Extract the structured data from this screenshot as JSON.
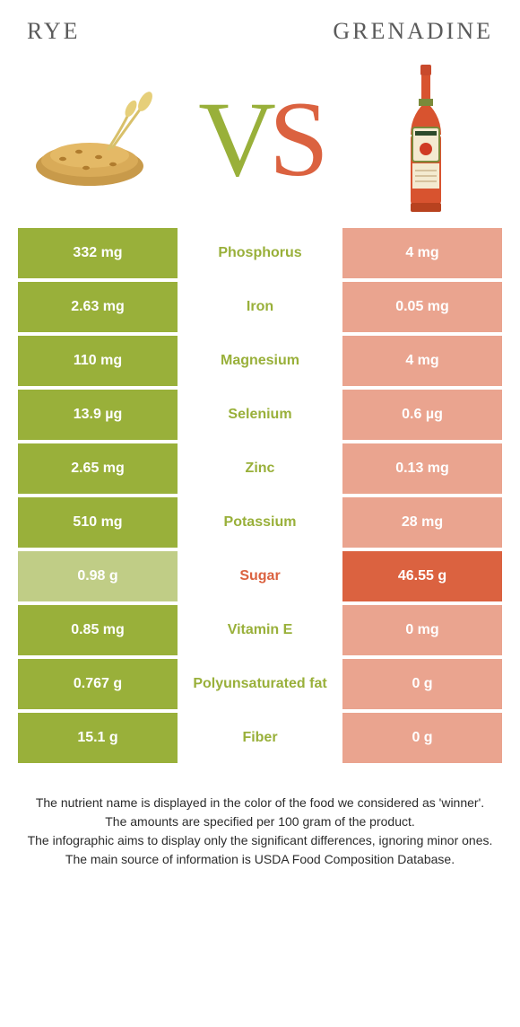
{
  "colors": {
    "left": "#99b03a",
    "right": "#db6240",
    "left_dim": "#c0cd86",
    "right_dim": "#eaa48f",
    "text_dark": "#333333"
  },
  "title_left": "Rye",
  "title_right": "Grenadine",
  "rows": [
    {
      "label": "Phosphorus",
      "left": "332 mg",
      "right": "4 mg",
      "winner": "left"
    },
    {
      "label": "Iron",
      "left": "2.63 mg",
      "right": "0.05 mg",
      "winner": "left"
    },
    {
      "label": "Magnesium",
      "left": "110 mg",
      "right": "4 mg",
      "winner": "left"
    },
    {
      "label": "Selenium",
      "left": "13.9 µg",
      "right": "0.6 µg",
      "winner": "left"
    },
    {
      "label": "Zinc",
      "left": "2.65 mg",
      "right": "0.13 mg",
      "winner": "left"
    },
    {
      "label": "Potassium",
      "left": "510 mg",
      "right": "28 mg",
      "winner": "left"
    },
    {
      "label": "Sugar",
      "left": "0.98 g",
      "right": "46.55 g",
      "winner": "right"
    },
    {
      "label": "Vitamin E",
      "left": "0.85 mg",
      "right": "0 mg",
      "winner": "left"
    },
    {
      "label": "Polyunsaturated fat",
      "left": "0.767 g",
      "right": "0 g",
      "winner": "left"
    },
    {
      "label": "Fiber",
      "left": "15.1 g",
      "right": "0 g",
      "winner": "left"
    }
  ],
  "footer_lines": [
    "The nutrient name is displayed in the color of the food we considered as 'winner'.",
    "The amounts are specified per 100 gram of the product.",
    "The infographic aims to display only the significant differences, ignoring minor ones.",
    "The main source of information is USDA Food Composition Database."
  ]
}
